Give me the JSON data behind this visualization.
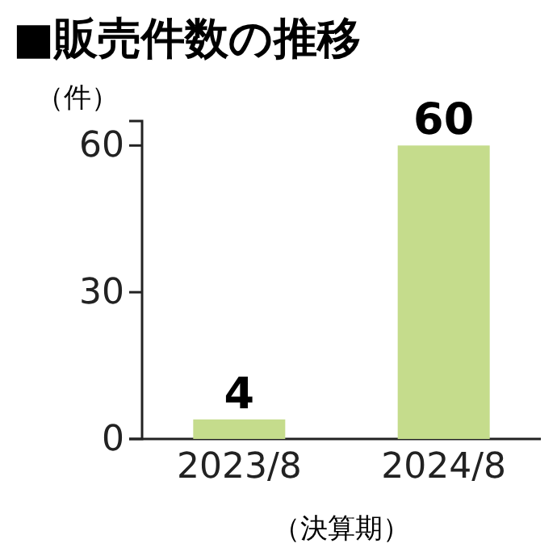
{
  "chart_data": {
    "type": "bar",
    "title": "■販売件数の推移",
    "ylabel": "（件）",
    "xlabel": "（決算期）",
    "categories": [
      "2023/8",
      "2024/8"
    ],
    "values": [
      4,
      60
    ],
    "color": "#c5dc8c",
    "ylim": [
      0,
      65
    ],
    "yticks": [
      0,
      30,
      60
    ],
    "data_labels": true
  }
}
